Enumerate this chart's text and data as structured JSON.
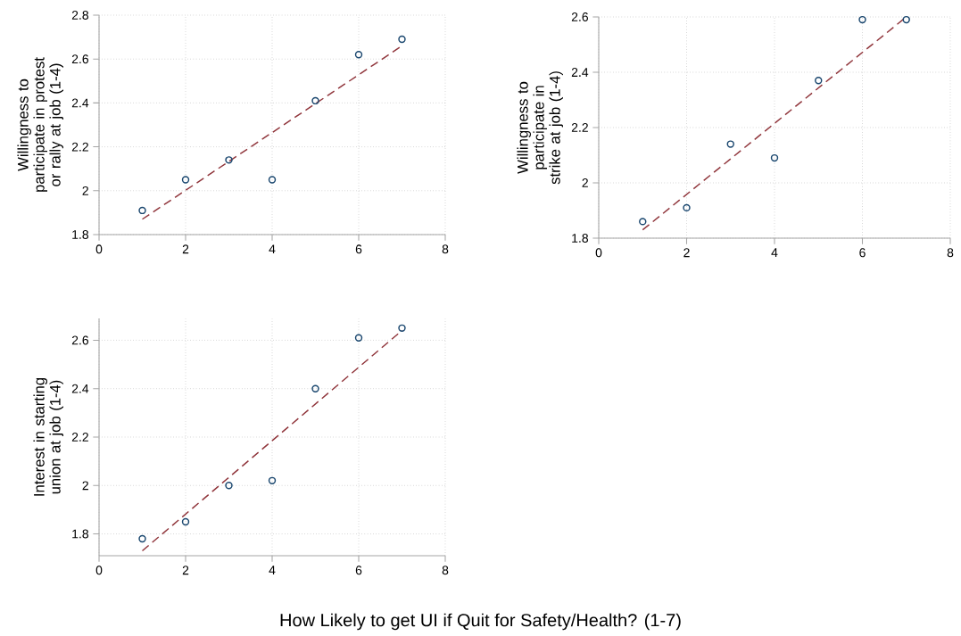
{
  "chart_data": [
    {
      "type": "scatter",
      "ylabel": "Willingness to participate in protest or rally at job (1-4)",
      "xlim": [
        0,
        8
      ],
      "ylim": [
        1.8,
        2.8
      ],
      "xticks": [
        0,
        2,
        4,
        6,
        8
      ],
      "yticks": [
        1.8,
        2,
        2.2,
        2.4,
        2.6,
        2.8
      ],
      "grid": true,
      "series": [
        {
          "type": "scatter",
          "color": "#1a476f",
          "marker": "circle",
          "x": [
            1,
            2,
            3,
            4,
            5,
            6,
            7
          ],
          "values": [
            1.91,
            2.05,
            2.14,
            2.05,
            2.41,
            2.62,
            2.69
          ]
        },
        {
          "type": "line",
          "color": "#90353b",
          "marker": "none",
          "line_style": "dashed",
          "x": [
            1,
            7
          ],
          "values": [
            1.87,
            2.66
          ]
        }
      ]
    },
    {
      "type": "scatter",
      "ylabel": "Willingness to participate in strike at job (1-4)",
      "xlim": [
        0,
        8
      ],
      "ylim": [
        1.8,
        2.6
      ],
      "xticks": [
        0,
        2,
        4,
        6,
        8
      ],
      "yticks": [
        1.8,
        2,
        2.2,
        2.4,
        2.6
      ],
      "grid": true,
      "series": [
        {
          "type": "scatter",
          "color": "#1a476f",
          "marker": "circle",
          "x": [
            1,
            2,
            3,
            4,
            5,
            6,
            7
          ],
          "values": [
            1.86,
            1.91,
            2.14,
            2.09,
            2.37,
            2.59,
            2.59
          ]
        },
        {
          "type": "line",
          "color": "#90353b",
          "marker": "none",
          "line_style": "dashed",
          "x": [
            1,
            7
          ],
          "values": [
            1.83,
            2.6
          ]
        }
      ]
    },
    {
      "type": "scatter",
      "ylabel": "Interest in starting union at job (1-4)",
      "xlabel": "How Likely to get UI if Quit for Safety/Health? (1-7)",
      "xlim": [
        0,
        8
      ],
      "ylim": [
        1.71,
        2.69
      ],
      "xticks": [
        0,
        2,
        4,
        6,
        8
      ],
      "yticks": [
        1.8,
        2,
        2.2,
        2.4,
        2.6
      ],
      "grid": true,
      "series": [
        {
          "type": "scatter",
          "color": "#1a476f",
          "marker": "circle",
          "x": [
            1,
            2,
            3,
            4,
            5,
            6,
            7
          ],
          "values": [
            1.78,
            1.85,
            2.0,
            2.02,
            2.4,
            2.61,
            2.65
          ]
        },
        {
          "type": "line",
          "color": "#90353b",
          "marker": "none",
          "line_style": "dashed",
          "x": [
            1,
            7
          ],
          "values": [
            1.73,
            2.64
          ]
        }
      ]
    }
  ]
}
